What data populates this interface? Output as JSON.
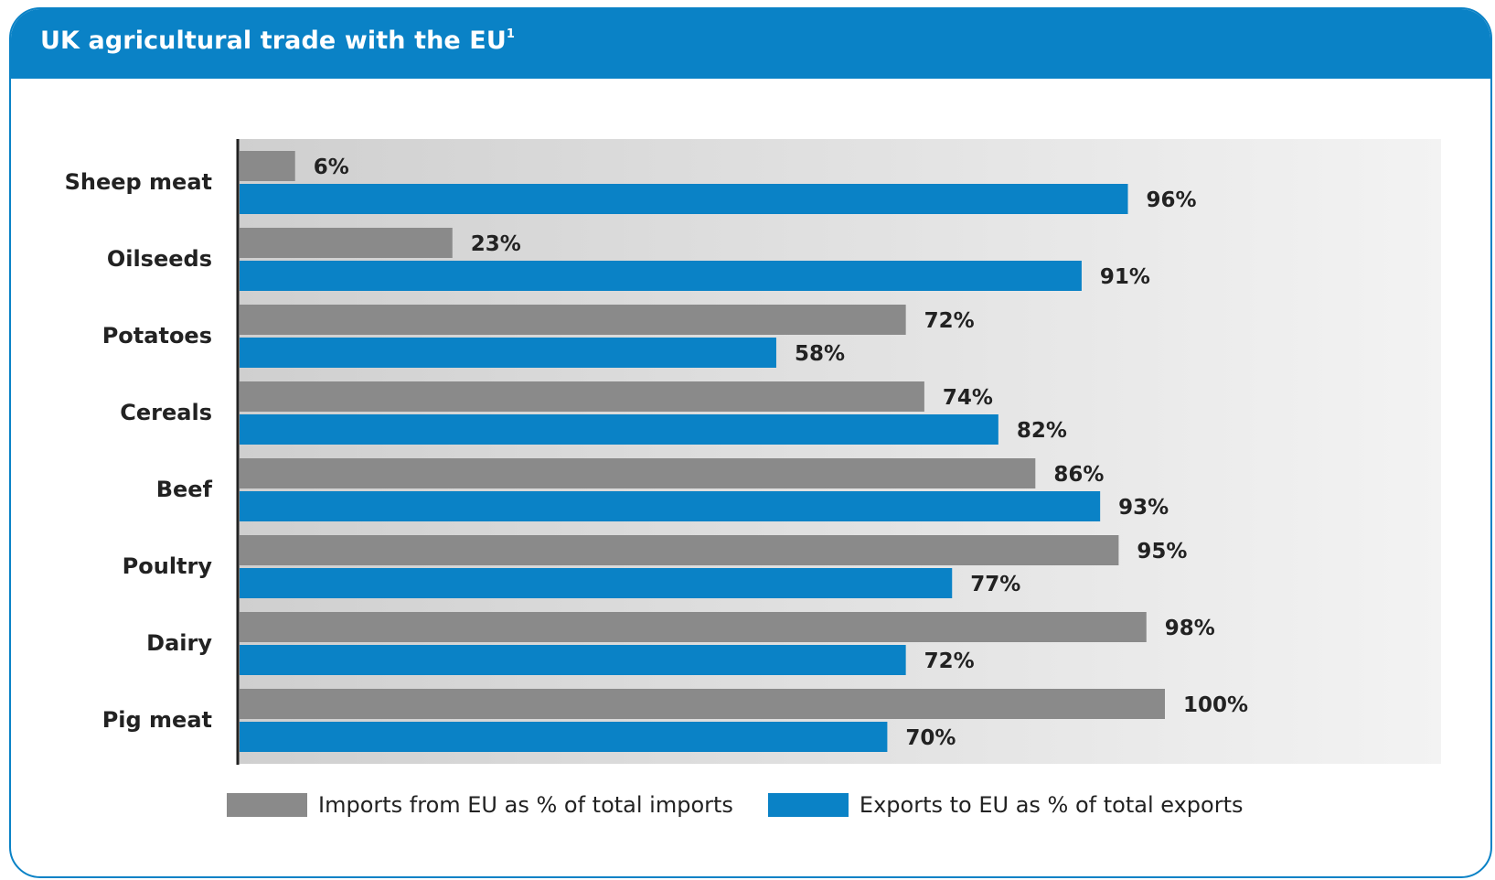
{
  "header": {
    "title": "UK agricultural trade with the EU",
    "title_sup": "1"
  },
  "colors": {
    "brand": "#0a82c6",
    "imports": "#8a8a8a",
    "exports": "#0a82c6"
  },
  "legend": {
    "imports_label": "Imports from EU as % of total imports",
    "exports_label": "Exports to EU as % of total exports"
  },
  "chart_data": {
    "type": "bar",
    "orientation": "horizontal",
    "categories": [
      "Sheep meat",
      "Oilseeds",
      "Potatoes",
      "Cereals",
      "Beef",
      "Poultry",
      "Dairy",
      "Pig meat"
    ],
    "series": [
      {
        "name": "Imports from EU as % of total imports",
        "color": "#8a8a8a",
        "values": [
          6,
          23,
          72,
          74,
          86,
          95,
          98,
          100
        ],
        "labels": [
          "6%",
          "23%",
          "72%",
          "74%",
          "86%",
          "95%",
          "98%",
          "100%"
        ]
      },
      {
        "name": "Exports to EU as % of total exports",
        "color": "#0a82c6",
        "values": [
          96,
          91,
          58,
          82,
          93,
          77,
          72,
          70
        ],
        "labels": [
          "96%",
          "91%",
          "58%",
          "82%",
          "93%",
          "77%",
          "72%",
          "70%"
        ]
      }
    ],
    "xlim": [
      0,
      100
    ],
    "grid": false,
    "legend_position": "bottom"
  }
}
